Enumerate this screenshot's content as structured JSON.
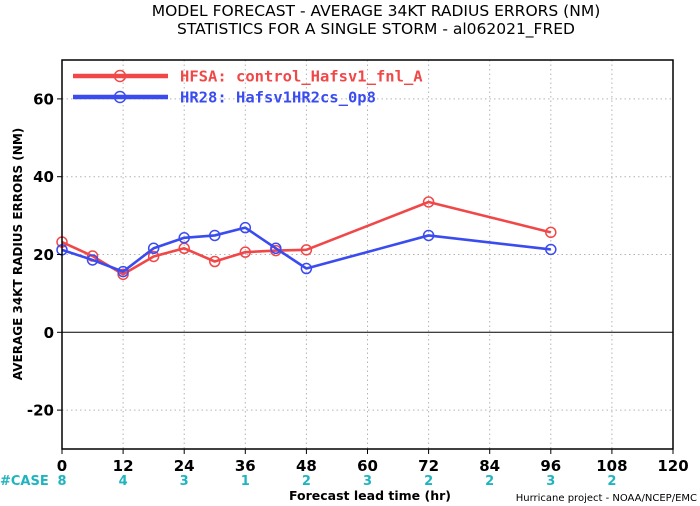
{
  "title_line1": "MODEL FORECAST - AVERAGE 34KT RADIUS ERRORS (NM)",
  "title_line2": "STATISTICS FOR A SINGLE STORM - al062021_FRED",
  "credit": "Hurricane project - NOAA/NCEP/EMC",
  "case_label": "#CASE",
  "case_color": "#1fb4c0",
  "chart_data": {
    "type": "line",
    "xlabel": "Forecast lead time (hr)",
    "ylabel": "AVERAGE 34KT RADIUS ERRORS (NM)",
    "xlim": [
      0,
      120
    ],
    "ylim": [
      -30,
      70
    ],
    "xticks": [
      0,
      12,
      24,
      36,
      48,
      60,
      72,
      84,
      96,
      108,
      120
    ],
    "yticks": [
      -20,
      0,
      20,
      40,
      60
    ],
    "grid": true,
    "legend_position": "top-left",
    "series": [
      {
        "name": "HFSA: control_Hafsv1_fnl_A",
        "color": "#f04848",
        "x": [
          0,
          6,
          12,
          18,
          24,
          30,
          36,
          42,
          48,
          72,
          96
        ],
        "y": [
          23.2,
          19.6,
          14.9,
          19.5,
          21.6,
          18.2,
          20.6,
          21.0,
          21.2,
          33.5,
          25.7
        ]
      },
      {
        "name": "HR28: Hafsv1HR2cs_0p8",
        "color": "#3a4cf0",
        "x": [
          0,
          6,
          12,
          18,
          24,
          30,
          36,
          42,
          48,
          72,
          96
        ],
        "y": [
          21.2,
          18.6,
          15.6,
          21.6,
          24.3,
          24.9,
          26.9,
          21.6,
          16.4,
          24.9,
          21.3
        ]
      }
    ],
    "cases": [
      {
        "x": 0,
        "n": "8"
      },
      {
        "x": 12,
        "n": "4"
      },
      {
        "x": 24,
        "n": "3"
      },
      {
        "x": 36,
        "n": "1"
      },
      {
        "x": 48,
        "n": "2"
      },
      {
        "x": 60,
        "n": "3"
      },
      {
        "x": 72,
        "n": "2"
      },
      {
        "x": 84,
        "n": "2"
      },
      {
        "x": 96,
        "n": "3"
      },
      {
        "x": 108,
        "n": "2"
      }
    ]
  }
}
